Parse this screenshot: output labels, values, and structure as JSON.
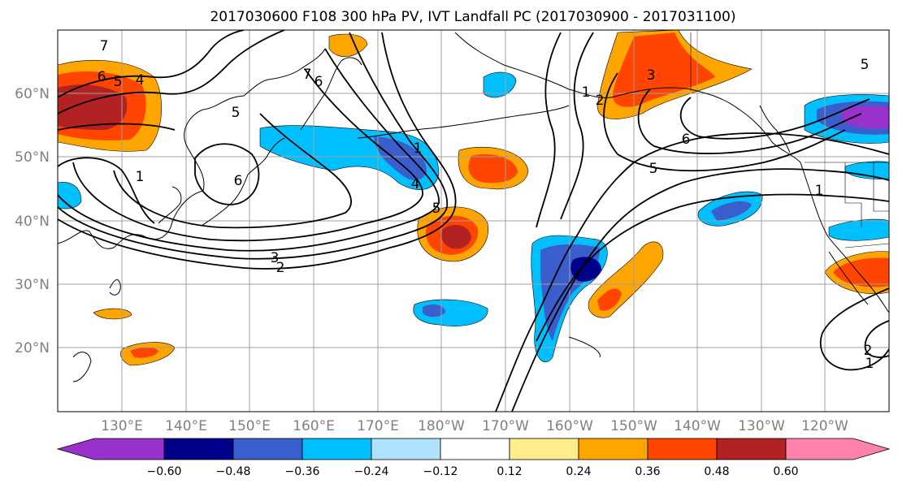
{
  "title": "2017030600 F108 300 hPa PV, IVT Landfall PC (2017030900 - 2017031100)",
  "lon_labels": [
    "130°E",
    "140°E",
    "150°E",
    "160°E",
    "170°E",
    "180°W",
    "170°W",
    "160°W",
    "150°W",
    "140°W",
    "130°W",
    "120°W"
  ],
  "lat_labels": [
    "60°N",
    "50°N",
    "40°N",
    "30°N",
    "20°N"
  ],
  "colorbar": {
    "ticks": [
      "−0.60",
      "−0.48",
      "−0.36",
      "−0.24",
      "−0.12",
      "0.12",
      "0.24",
      "0.36",
      "0.48",
      "0.60"
    ],
    "colors": [
      "#9932cc",
      "#00008b",
      "#3a5fcd",
      "#00bfff",
      "#b0e2ff",
      "#ffffff",
      "#ffec8b",
      "#ffa500",
      "#ff4500",
      "#b22222",
      "#ff82ab"
    ]
  },
  "contour_labels": [
    "7",
    "6",
    "5",
    "4",
    "7",
    "6",
    "5",
    "5",
    "6",
    "1",
    "3",
    "2",
    "1",
    "5",
    "4",
    "1",
    "2",
    "3",
    "6",
    "5",
    "1",
    "2",
    "1"
  ],
  "map": {
    "lon_range": [
      120,
      250
    ],
    "lat_range": [
      10,
      70
    ],
    "gridline_lons": [
      130,
      140,
      150,
      160,
      170,
      180,
      190,
      200,
      210,
      220,
      230,
      240
    ],
    "gridline_lats": [
      20,
      30,
      40,
      50,
      60
    ]
  }
}
